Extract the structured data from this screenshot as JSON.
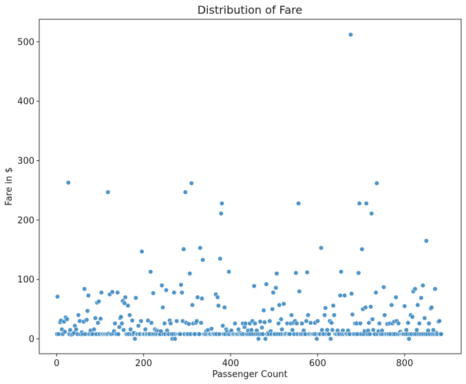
{
  "chart_data": {
    "type": "scatter",
    "title": "Distribution of Fare",
    "xlabel": "Passenger Count",
    "ylabel": "Fare in $",
    "xlim": [
      -40,
      930
    ],
    "ylim": [
      -25,
      538
    ],
    "xticks": [
      0,
      200,
      400,
      600,
      800
    ],
    "yticks": [
      0,
      100,
      200,
      300,
      400,
      500
    ],
    "grid": false,
    "point_color": "#3a87c0",
    "points": [
      [
        1,
        8
      ],
      [
        2,
        71
      ],
      [
        5,
        8
      ],
      [
        8,
        28
      ],
      [
        10,
        31
      ],
      [
        12,
        16
      ],
      [
        14,
        8
      ],
      [
        17,
        29
      ],
      [
        19,
        12
      ],
      [
        21,
        36
      ],
      [
        24,
        33
      ],
      [
        27,
        263
      ],
      [
        29,
        8
      ],
      [
        31,
        15
      ],
      [
        34,
        7
      ],
      [
        37,
        8
      ],
      [
        40,
        10
      ],
      [
        42,
        22
      ],
      [
        45,
        16
      ],
      [
        48,
        8
      ],
      [
        50,
        40
      ],
      [
        53,
        30
      ],
      [
        55,
        8
      ],
      [
        58,
        11
      ],
      [
        60,
        8
      ],
      [
        62,
        29
      ],
      [
        64,
        84
      ],
      [
        66,
        8
      ],
      [
        69,
        32
      ],
      [
        71,
        47
      ],
      [
        73,
        73
      ],
      [
        75,
        8
      ],
      [
        78,
        14
      ],
      [
        80,
        8
      ],
      [
        83,
        8
      ],
      [
        86,
        16
      ],
      [
        89,
        35
      ],
      [
        91,
        8
      ],
      [
        93,
        61
      ],
      [
        95,
        27
      ],
      [
        97,
        63
      ],
      [
        99,
        8
      ],
      [
        101,
        34
      ],
      [
        103,
        78
      ],
      [
        105,
        8
      ],
      [
        107,
        8
      ],
      [
        110,
        8
      ],
      [
        112,
        8
      ],
      [
        115,
        8
      ],
      [
        117,
        8
      ],
      [
        118,
        247
      ],
      [
        120,
        9
      ],
      [
        122,
        75
      ],
      [
        124,
        8
      ],
      [
        126,
        8
      ],
      [
        128,
        79
      ],
      [
        130,
        9
      ],
      [
        132,
        13
      ],
      [
        134,
        26
      ],
      [
        136,
        8
      ],
      [
        138,
        8
      ],
      [
        140,
        78
      ],
      [
        142,
        8
      ],
      [
        144,
        20
      ],
      [
        146,
        35
      ],
      [
        148,
        37
      ],
      [
        150,
        26
      ],
      [
        152,
        64
      ],
      [
        154,
        15
      ],
      [
        156,
        60
      ],
      [
        158,
        70
      ],
      [
        160,
        8
      ],
      [
        162,
        8
      ],
      [
        164,
        56
      ],
      [
        166,
        8
      ],
      [
        168,
        40
      ],
      [
        170,
        16
      ],
      [
        172,
        8
      ],
      [
        174,
        31
      ],
      [
        176,
        8
      ],
      [
        178,
        10
      ],
      [
        180,
        0
      ],
      [
        182,
        69
      ],
      [
        184,
        8
      ],
      [
        186,
        8
      ],
      [
        188,
        22
      ],
      [
        190,
        8
      ],
      [
        192,
        8
      ],
      [
        194,
        30
      ],
      [
        196,
        147
      ],
      [
        198,
        8
      ],
      [
        200,
        8
      ],
      [
        202,
        8
      ],
      [
        204,
        16
      ],
      [
        206,
        8
      ],
      [
        208,
        8
      ],
      [
        210,
        31
      ],
      [
        212,
        8
      ],
      [
        214,
        8
      ],
      [
        216,
        113
      ],
      [
        218,
        27
      ],
      [
        220,
        8
      ],
      [
        222,
        77
      ],
      [
        224,
        8
      ],
      [
        226,
        16
      ],
      [
        228,
        8
      ],
      [
        230,
        14
      ],
      [
        232,
        8
      ],
      [
        234,
        13
      ],
      [
        236,
        8
      ],
      [
        238,
        8
      ],
      [
        240,
        13
      ],
      [
        242,
        90
      ],
      [
        244,
        53
      ],
      [
        246,
        8
      ],
      [
        248,
        26
      ],
      [
        250,
        8
      ],
      [
        252,
        82
      ],
      [
        254,
        14
      ],
      [
        256,
        8
      ],
      [
        258,
        8
      ],
      [
        260,
        31
      ],
      [
        262,
        26
      ],
      [
        264,
        8
      ],
      [
        266,
        0
      ],
      [
        268,
        8
      ],
      [
        270,
        78
      ],
      [
        272,
        0
      ],
      [
        274,
        8
      ],
      [
        276,
        30
      ],
      [
        278,
        8
      ],
      [
        280,
        8
      ],
      [
        282,
        8
      ],
      [
        284,
        8
      ],
      [
        286,
        91
      ],
      [
        288,
        78
      ],
      [
        290,
        30
      ],
      [
        292,
        151
      ],
      [
        294,
        8
      ],
      [
        296,
        247
      ],
      [
        298,
        27
      ],
      [
        300,
        8
      ],
      [
        302,
        8
      ],
      [
        304,
        25
      ],
      [
        306,
        110
      ],
      [
        308,
        8
      ],
      [
        310,
        262
      ],
      [
        312,
        57
      ],
      [
        314,
        26
      ],
      [
        316,
        8
      ],
      [
        318,
        8
      ],
      [
        320,
        27
      ],
      [
        322,
        30
      ],
      [
        324,
        70
      ],
      [
        326,
        8
      ],
      [
        328,
        8
      ],
      [
        330,
        153
      ],
      [
        332,
        27
      ],
      [
        334,
        68
      ],
      [
        336,
        133
      ],
      [
        338,
        8
      ],
      [
        340,
        8
      ],
      [
        342,
        8
      ],
      [
        344,
        13
      ],
      [
        346,
        8
      ],
      [
        348,
        15
      ],
      [
        350,
        8
      ],
      [
        352,
        8
      ],
      [
        354,
        8
      ],
      [
        356,
        17
      ],
      [
        358,
        8
      ],
      [
        360,
        9
      ],
      [
        362,
        8
      ],
      [
        364,
        8
      ],
      [
        366,
        75
      ],
      [
        368,
        8
      ],
      [
        370,
        70
      ],
      [
        372,
        56
      ],
      [
        374,
        8
      ],
      [
        376,
        135
      ],
      [
        378,
        211
      ],
      [
        380,
        228
      ],
      [
        382,
        22
      ],
      [
        384,
        8
      ],
      [
        386,
        53
      ],
      [
        388,
        8
      ],
      [
        390,
        16
      ],
      [
        392,
        12
      ],
      [
        394,
        8
      ],
      [
        396,
        113
      ],
      [
        398,
        8
      ],
      [
        400,
        12
      ],
      [
        402,
        14
      ],
      [
        404,
        8
      ],
      [
        406,
        8
      ],
      [
        408,
        8
      ],
      [
        410,
        26
      ],
      [
        412,
        8
      ],
      [
        414,
        8
      ],
      [
        416,
        8
      ],
      [
        418,
        16
      ],
      [
        420,
        8
      ],
      [
        422,
        10
      ],
      [
        424,
        8
      ],
      [
        426,
        8
      ],
      [
        428,
        26
      ],
      [
        430,
        8
      ],
      [
        432,
        20
      ],
      [
        434,
        26
      ],
      [
        436,
        8
      ],
      [
        438,
        8
      ],
      [
        440,
        14
      ],
      [
        442,
        8
      ],
      [
        444,
        26
      ],
      [
        446,
        8
      ],
      [
        448,
        15
      ],
      [
        450,
        30
      ],
      [
        452,
        8
      ],
      [
        454,
        89
      ],
      [
        456,
        26
      ],
      [
        458,
        8
      ],
      [
        460,
        14
      ],
      [
        462,
        8
      ],
      [
        464,
        0
      ],
      [
        466,
        8
      ],
      [
        468,
        29
      ],
      [
        470,
        8
      ],
      [
        472,
        19
      ],
      [
        474,
        8
      ],
      [
        476,
        48
      ],
      [
        478,
        28
      ],
      [
        480,
        0
      ],
      [
        482,
        92
      ],
      [
        484,
        8
      ],
      [
        486,
        10
      ],
      [
        488,
        8
      ],
      [
        490,
        30
      ],
      [
        492,
        13
      ],
      [
        494,
        8
      ],
      [
        496,
        50
      ],
      [
        498,
        78
      ],
      [
        500,
        8
      ],
      [
        502,
        8
      ],
      [
        504,
        86
      ],
      [
        506,
        110
      ],
      [
        508,
        8
      ],
      [
        510,
        26
      ],
      [
        512,
        57
      ],
      [
        514,
        8
      ],
      [
        516,
        33
      ],
      [
        518,
        16
      ],
      [
        520,
        8
      ],
      [
        522,
        59
      ],
      [
        524,
        8
      ],
      [
        526,
        8
      ],
      [
        528,
        9
      ],
      [
        530,
        26
      ],
      [
        532,
        8
      ],
      [
        534,
        8
      ],
      [
        536,
        8
      ],
      [
        538,
        26
      ],
      [
        540,
        40
      ],
      [
        542,
        15
      ],
      [
        544,
        27
      ],
      [
        546,
        8
      ],
      [
        548,
        30
      ],
      [
        550,
        111
      ],
      [
        552,
        26
      ],
      [
        554,
        8
      ],
      [
        556,
        228
      ],
      [
        558,
        80
      ],
      [
        560,
        8
      ],
      [
        562,
        8
      ],
      [
        564,
        26
      ],
      [
        566,
        8
      ],
      [
        568,
        14
      ],
      [
        570,
        8
      ],
      [
        572,
        8
      ],
      [
        574,
        30
      ],
      [
        576,
        112
      ],
      [
        578,
        40
      ],
      [
        580,
        8
      ],
      [
        582,
        8
      ],
      [
        584,
        27
      ],
      [
        586,
        8
      ],
      [
        588,
        8
      ],
      [
        590,
        8
      ],
      [
        592,
        8
      ],
      [
        594,
        27
      ],
      [
        596,
        8
      ],
      [
        598,
        0
      ],
      [
        600,
        30
      ],
      [
        602,
        8
      ],
      [
        604,
        8
      ],
      [
        606,
        8
      ],
      [
        608,
        153
      ],
      [
        610,
        15
      ],
      [
        612,
        8
      ],
      [
        614,
        8
      ],
      [
        616,
        40
      ],
      [
        618,
        52
      ],
      [
        620,
        8
      ],
      [
        622,
        15
      ],
      [
        624,
        8
      ],
      [
        626,
        8
      ],
      [
        628,
        30
      ],
      [
        630,
        0
      ],
      [
        632,
        27
      ],
      [
        634,
        15
      ],
      [
        636,
        56
      ],
      [
        638,
        40
      ],
      [
        640,
        8
      ],
      [
        642,
        8
      ],
      [
        644,
        8
      ],
      [
        646,
        14
      ],
      [
        648,
        8
      ],
      [
        650,
        8
      ],
      [
        652,
        73
      ],
      [
        654,
        113
      ],
      [
        656,
        8
      ],
      [
        658,
        14
      ],
      [
        660,
        8
      ],
      [
        662,
        73
      ],
      [
        664,
        9
      ],
      [
        666,
        9
      ],
      [
        668,
        8
      ],
      [
        670,
        14
      ],
      [
        672,
        8
      ],
      [
        674,
        8
      ],
      [
        676,
        512
      ],
      [
        678,
        76
      ],
      [
        680,
        41
      ],
      [
        682,
        8
      ],
      [
        684,
        8
      ],
      [
        686,
        26
      ],
      [
        688,
        8
      ],
      [
        690,
        26
      ],
      [
        692,
        8
      ],
      [
        694,
        111
      ],
      [
        696,
        228
      ],
      [
        698,
        26
      ],
      [
        700,
        8
      ],
      [
        702,
        151
      ],
      [
        704,
        50
      ],
      [
        706,
        8
      ],
      [
        708,
        13
      ],
      [
        710,
        53
      ],
      [
        712,
        228
      ],
      [
        714,
        8
      ],
      [
        716,
        14
      ],
      [
        718,
        27
      ],
      [
        720,
        8
      ],
      [
        722,
        54
      ],
      [
        724,
        211
      ],
      [
        726,
        33
      ],
      [
        728,
        15
      ],
      [
        730,
        8
      ],
      [
        732,
        8
      ],
      [
        734,
        78
      ],
      [
        736,
        262
      ],
      [
        738,
        8
      ],
      [
        740,
        13
      ],
      [
        742,
        26
      ],
      [
        744,
        8
      ],
      [
        746,
        8
      ],
      [
        748,
        14
      ],
      [
        750,
        8
      ],
      [
        752,
        87
      ],
      [
        754,
        40
      ],
      [
        756,
        8
      ],
      [
        758,
        8
      ],
      [
        760,
        25
      ],
      [
        762,
        8
      ],
      [
        764,
        8
      ],
      [
        766,
        26
      ],
      [
        768,
        8
      ],
      [
        770,
        57
      ],
      [
        772,
        26
      ],
      [
        774,
        8
      ],
      [
        776,
        29
      ],
      [
        778,
        8
      ],
      [
        780,
        70
      ],
      [
        782,
        30
      ],
      [
        784,
        8
      ],
      [
        786,
        26
      ],
      [
        788,
        8
      ],
      [
        790,
        12
      ],
      [
        792,
        8
      ],
      [
        794,
        8
      ],
      [
        796,
        8
      ],
      [
        798,
        8
      ],
      [
        800,
        55
      ],
      [
        802,
        8
      ],
      [
        804,
        15
      ],
      [
        806,
        8
      ],
      [
        808,
        27
      ],
      [
        810,
        0
      ],
      [
        812,
        8
      ],
      [
        814,
        40
      ],
      [
        816,
        8
      ],
      [
        818,
        37
      ],
      [
        820,
        80
      ],
      [
        822,
        8
      ],
      [
        824,
        84
      ],
      [
        826,
        8
      ],
      [
        828,
        15
      ],
      [
        830,
        57
      ],
      [
        832,
        8
      ],
      [
        834,
        26
      ],
      [
        836,
        8
      ],
      [
        838,
        69
      ],
      [
        840,
        8
      ],
      [
        842,
        90
      ],
      [
        844,
        8
      ],
      [
        846,
        35
      ],
      [
        848,
        8
      ],
      [
        850,
        165
      ],
      [
        852,
        8
      ],
      [
        854,
        14
      ],
      [
        856,
        26
      ],
      [
        858,
        8
      ],
      [
        860,
        51
      ],
      [
        862,
        53
      ],
      [
        864,
        8
      ],
      [
        866,
        15
      ],
      [
        868,
        8
      ],
      [
        870,
        84
      ],
      [
        872,
        8
      ],
      [
        874,
        10
      ],
      [
        876,
        8
      ],
      [
        878,
        29
      ],
      [
        880,
        30
      ],
      [
        882,
        8
      ],
      [
        884,
        8
      ]
    ]
  }
}
